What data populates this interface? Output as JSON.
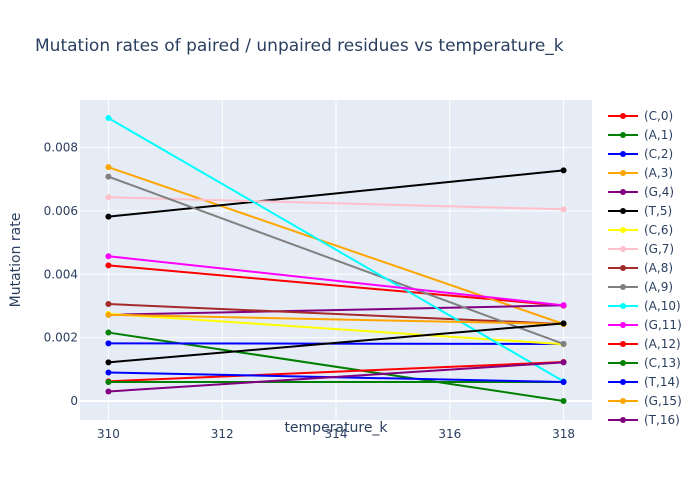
{
  "chart_data": {
    "type": "line",
    "title": "Mutation rates of paired / unpaired residues vs temperature_k",
    "xlabel": "temperature_k",
    "ylabel": "Mutation rate",
    "xlim": [
      309.5,
      318.5
    ],
    "ylim": [
      -0.0006,
      0.0095
    ],
    "x_ticks": [
      310,
      312,
      314,
      316,
      318
    ],
    "x_tick_labels": [
      "310",
      "312",
      "314",
      "316",
      "318"
    ],
    "y_ticks": [
      0,
      0.002,
      0.004,
      0.006,
      0.008
    ],
    "y_tick_labels": [
      "0",
      "0.002",
      "0.004",
      "0.006",
      "0.008"
    ],
    "grid": true,
    "legend_position": "right",
    "plot_background": "#e5ecf6",
    "x": [
      310,
      318
    ],
    "series": [
      {
        "name": "(C,0)",
        "color": "#ff0000",
        "values": [
          0.00428,
          0.00301
        ]
      },
      {
        "name": "(A,1)",
        "color": "#008000",
        "values": [
          0.00216,
          0.0
        ]
      },
      {
        "name": "(C,2)",
        "color": "#0000ff",
        "values": [
          0.00182,
          0.0018
        ]
      },
      {
        "name": "(A,3)",
        "color": "#ffa500",
        "values": [
          0.00738,
          0.00243
        ]
      },
      {
        "name": "(G,4)",
        "color": "#800080",
        "values": [
          0.00272,
          0.00302
        ]
      },
      {
        "name": "(T,5)",
        "color": "#000000",
        "values": [
          0.00582,
          0.00728
        ]
      },
      {
        "name": "(C,6)",
        "color": "#ffff00",
        "values": [
          0.00275,
          0.00179
        ]
      },
      {
        "name": "(G,7)",
        "color": "#ffc0cb",
        "values": [
          0.00643,
          0.00605
        ]
      },
      {
        "name": "(A,8)",
        "color": "#a52a2a",
        "values": [
          0.00306,
          0.00243
        ]
      },
      {
        "name": "(A,9)",
        "color": "#808080",
        "values": [
          0.00708,
          0.0018
        ]
      },
      {
        "name": "(A,10)",
        "color": "#00ffff",
        "values": [
          0.00893,
          0.00062
        ]
      },
      {
        "name": "(G,11)",
        "color": "#ff00ff",
        "values": [
          0.00457,
          0.00302
        ]
      },
      {
        "name": "(A,12)",
        "color": "#ff0000",
        "values": [
          0.00062,
          0.00123
        ]
      },
      {
        "name": "(C,13)",
        "color": "#008000",
        "values": [
          0.0006,
          0.0006
        ]
      },
      {
        "name": "(T,14)",
        "color": "#0000ff",
        "values": [
          0.0009,
          0.0006
        ]
      },
      {
        "name": "(G,15)",
        "color": "#ffa500",
        "values": [
          0.00272,
          0.00243
        ]
      },
      {
        "name": "(T,16)",
        "color": "#800080",
        "values": [
          0.0003,
          0.00122
        ]
      },
      {
        "name": "",
        "color": "#000000",
        "values": [
          0.00122,
          0.00245
        ]
      }
    ],
    "legend_visible_count": 17
  }
}
